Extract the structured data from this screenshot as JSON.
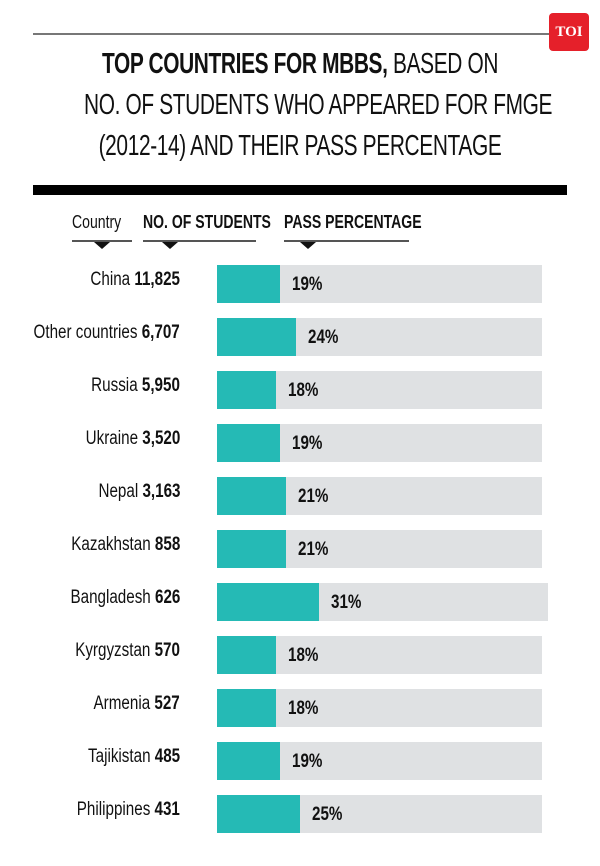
{
  "header": {
    "logo_text": "TOI",
    "title_bold": "TOP COUNTRIES FOR MBBS,",
    "title_line1_rest": " BASED ON",
    "title_line2": "NO. OF STUDENTS WHO APPEARED FOR FMGE",
    "title_line3": "(2012-14) AND THEIR PASS PERCENTAGE"
  },
  "columns": {
    "country": "Country",
    "students": "NO. OF STUDENTS",
    "pass": "PASS PERCENTAGE"
  },
  "colors": {
    "bar_fill": "#25bab5",
    "bar_track": "#dfe1e3",
    "logo": "#e5202a"
  },
  "rows": [
    {
      "country": "China",
      "students": "11,825",
      "pass": "19%"
    },
    {
      "country": "Other countries",
      "students": "6,707",
      "pass": "24%"
    },
    {
      "country": "Russia",
      "students": "5,950",
      "pass": "18%"
    },
    {
      "country": "Ukraine",
      "students": "3,520",
      "pass": "19%"
    },
    {
      "country": "Nepal",
      "students": "3,163",
      "pass": "21%"
    },
    {
      "country": "Kazakhstan",
      "students": "858",
      "pass": "21%"
    },
    {
      "country": "Bangladesh",
      "students": "626",
      "pass": "31%"
    },
    {
      "country": "Kyrgyzstan",
      "students": "570",
      "pass": "18%"
    },
    {
      "country": "Armenia",
      "students": "527",
      "pass": "18%"
    },
    {
      "country": "Tajikistan",
      "students": "485",
      "pass": "19%"
    },
    {
      "country": "Philippines",
      "students": "431",
      "pass": "25%"
    }
  ],
  "chart_data": {
    "type": "bar",
    "orientation": "horizontal",
    "title": "TOP COUNTRIES FOR MBBS, BASED ON NO. OF STUDENTS WHO APPEARED FOR FMGE (2012-14) AND THEIR PASS PERCENTAGE",
    "categories": [
      "China",
      "Other countries",
      "Russia",
      "Ukraine",
      "Nepal",
      "Kazakhstan",
      "Bangladesh",
      "Kyrgyzstan",
      "Armenia",
      "Tajikistan",
      "Philippines"
    ],
    "series": [
      {
        "name": "NO. OF STUDENTS",
        "values": [
          11825,
          6707,
          5950,
          3520,
          3163,
          858,
          626,
          570,
          527,
          485,
          431
        ]
      },
      {
        "name": "PASS PERCENTAGE",
        "values": [
          19,
          24,
          18,
          19,
          21,
          21,
          31,
          18,
          18,
          19,
          25
        ]
      }
    ],
    "xlabel": "PASS PERCENTAGE",
    "ylabel": "Country",
    "xlim": [
      0,
      100
    ],
    "grid": false,
    "legend": "column headers at top"
  }
}
